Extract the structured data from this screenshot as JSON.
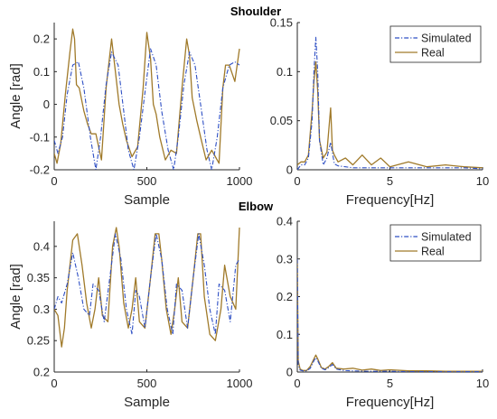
{
  "figure": {
    "titles": {
      "shoulder": "Shoulder",
      "elbow": "Elbow"
    },
    "colors": {
      "simulated": "#2e4fc4",
      "real": "#a07a2a",
      "axis": "#262626"
    }
  },
  "chart_data": [
    {
      "id": "shoulder_time",
      "type": "line",
      "title": "Shoulder",
      "xlabel": "Sample",
      "ylabel": "Angle [rad]",
      "xlim": [
        0,
        1000
      ],
      "ylim": [
        -0.2,
        0.25
      ],
      "xticks": [
        0,
        500,
        1000
      ],
      "yticks": [
        -0.2,
        -0.1,
        0,
        0.1,
        0.2
      ],
      "ytick_labels": [
        "-0.2",
        "-0.1",
        "0",
        "0.1",
        "0.2"
      ],
      "legend": null,
      "series": [
        {
          "name": "Simulated",
          "style": "dashdot",
          "color": "#2e4fc4",
          "x": [
            0,
            20,
            45,
            70,
            100,
            130,
            160,
            195,
            225,
            250,
            280,
            310,
            345,
            375,
            400,
            430,
            460,
            495,
            520,
            550,
            580,
            615,
            645,
            670,
            700,
            730,
            760,
            795,
            825,
            850,
            880,
            910,
            945,
            975,
            1000
          ],
          "y": [
            -0.11,
            -0.15,
            -0.1,
            0.03,
            0.12,
            0.13,
            0.05,
            -0.1,
            -0.2,
            -0.1,
            0.06,
            0.16,
            0.12,
            -0.02,
            -0.14,
            -0.2,
            -0.1,
            0.06,
            0.17,
            0.12,
            -0.02,
            -0.14,
            -0.2,
            -0.1,
            0.06,
            0.16,
            0.12,
            -0.02,
            -0.14,
            -0.2,
            -0.1,
            0.05,
            0.12,
            0.13,
            0.12
          ]
        },
        {
          "name": "Real",
          "style": "solid",
          "color": "#a07a2a",
          "x": [
            0,
            15,
            35,
            60,
            85,
            100,
            110,
            120,
            135,
            160,
            180,
            200,
            225,
            255,
            280,
            310,
            330,
            350,
            370,
            390,
            420,
            450,
            480,
            500,
            520,
            535,
            550,
            570,
            600,
            630,
            660,
            690,
            715,
            730,
            745,
            770,
            790,
            820,
            850,
            870,
            890,
            910,
            925,
            945,
            975,
            1000
          ],
          "y": [
            -0.15,
            -0.18,
            -0.12,
            0.03,
            0.16,
            0.23,
            0.2,
            0.06,
            0.05,
            -0.02,
            -0.06,
            -0.09,
            -0.09,
            -0.17,
            0.05,
            0.2,
            0.1,
            0.0,
            -0.06,
            -0.11,
            -0.16,
            -0.13,
            0.05,
            0.22,
            0.14,
            0.0,
            -0.03,
            -0.1,
            -0.17,
            -0.14,
            -0.15,
            0.05,
            0.2,
            0.15,
            0.02,
            -0.05,
            -0.1,
            -0.17,
            -0.14,
            -0.16,
            -0.18,
            0.05,
            0.12,
            0.12,
            0.07,
            0.17
          ]
        }
      ]
    },
    {
      "id": "shoulder_freq",
      "type": "line",
      "title": "",
      "xlabel": "Frequency[Hz]",
      "ylabel": "",
      "xlim": [
        0,
        10
      ],
      "ylim": [
        0,
        0.15
      ],
      "xticks": [
        0,
        5,
        10
      ],
      "yticks": [
        0,
        0.05,
        0.1,
        0.15
      ],
      "ytick_labels": [
        "0",
        "0.05",
        "0.1",
        "0.15"
      ],
      "legend": "top-right",
      "series": [
        {
          "name": "Simulated",
          "style": "dashdot",
          "color": "#2e4fc4",
          "x": [
            0,
            0.2,
            0.4,
            0.6,
            0.8,
            0.9,
            1.0,
            1.1,
            1.2,
            1.4,
            1.6,
            1.8,
            2.0,
            2.2,
            2.6,
            3.0,
            4.0,
            5.0,
            6.0,
            7.0,
            8.0,
            9.0,
            10.0
          ],
          "y": [
            0.0,
            0.005,
            0.005,
            0.012,
            0.05,
            0.1,
            0.135,
            0.1,
            0.03,
            0.005,
            0.012,
            0.028,
            0.006,
            0.004,
            0.003,
            0.002,
            0.002,
            0.002,
            0.002,
            0.002,
            0.002,
            0.002,
            0.001
          ]
        },
        {
          "name": "Real",
          "style": "solid",
          "color": "#a07a2a",
          "x": [
            0,
            0.2,
            0.4,
            0.6,
            0.8,
            0.9,
            1.0,
            1.1,
            1.2,
            1.4,
            1.6,
            1.8,
            1.9,
            2.0,
            2.2,
            2.6,
            3.0,
            3.5,
            4.0,
            4.5,
            5.0,
            6.0,
            7.0,
            8.0,
            9.0,
            10.0
          ],
          "y": [
            0.005,
            0.008,
            0.008,
            0.015,
            0.06,
            0.09,
            0.11,
            0.08,
            0.03,
            0.012,
            0.018,
            0.063,
            0.02,
            0.015,
            0.008,
            0.012,
            0.005,
            0.015,
            0.005,
            0.012,
            0.003,
            0.008,
            0.003,
            0.005,
            0.003,
            0.002
          ]
        }
      ]
    },
    {
      "id": "elbow_time",
      "type": "line",
      "title": "Elbow",
      "xlabel": "Sample",
      "ylabel": "Angle [rad]",
      "xlim": [
        0,
        1000
      ],
      "ylim": [
        0.2,
        0.44
      ],
      "xticks": [
        0,
        500,
        1000
      ],
      "yticks": [
        0.2,
        0.25,
        0.3,
        0.35,
        0.4
      ],
      "ytick_labels": [
        "0.2",
        "0.25",
        "0.3",
        "0.35",
        "0.4"
      ],
      "legend": null,
      "series": [
        {
          "name": "Simulated",
          "style": "dashdot",
          "color": "#2e4fc4",
          "x": [
            0,
            20,
            40,
            70,
            100,
            130,
            160,
            190,
            210,
            240,
            270,
            300,
            330,
            360,
            390,
            420,
            440,
            460,
            490,
            520,
            550,
            580,
            610,
            640,
            660,
            690,
            720,
            750,
            780,
            810,
            840,
            870,
            890,
            920,
            950,
            980,
            1000
          ],
          "y": [
            0.3,
            0.32,
            0.31,
            0.34,
            0.39,
            0.35,
            0.3,
            0.29,
            0.34,
            0.33,
            0.28,
            0.35,
            0.42,
            0.38,
            0.3,
            0.26,
            0.33,
            0.32,
            0.27,
            0.35,
            0.42,
            0.38,
            0.3,
            0.26,
            0.34,
            0.33,
            0.27,
            0.35,
            0.42,
            0.37,
            0.3,
            0.26,
            0.34,
            0.33,
            0.28,
            0.37,
            0.38
          ]
        },
        {
          "name": "Real",
          "style": "solid",
          "color": "#a07a2a",
          "x": [
            0,
            20,
            40,
            55,
            70,
            100,
            125,
            150,
            175,
            200,
            220,
            240,
            260,
            290,
            315,
            335,
            350,
            375,
            400,
            420,
            440,
            460,
            490,
            520,
            545,
            565,
            580,
            605,
            630,
            650,
            670,
            690,
            720,
            750,
            775,
            790,
            810,
            840,
            870,
            900,
            920,
            950,
            980,
            1000
          ],
          "y": [
            0.3,
            0.29,
            0.24,
            0.27,
            0.33,
            0.41,
            0.42,
            0.37,
            0.31,
            0.27,
            0.3,
            0.35,
            0.29,
            0.28,
            0.4,
            0.43,
            0.4,
            0.31,
            0.27,
            0.3,
            0.35,
            0.28,
            0.27,
            0.35,
            0.42,
            0.42,
            0.38,
            0.3,
            0.26,
            0.3,
            0.35,
            0.28,
            0.27,
            0.35,
            0.42,
            0.42,
            0.32,
            0.26,
            0.25,
            0.3,
            0.37,
            0.32,
            0.3,
            0.43
          ]
        }
      ]
    },
    {
      "id": "elbow_freq",
      "type": "line",
      "title": "",
      "xlabel": "Frequency[Hz]",
      "ylabel": "",
      "xlim": [
        0,
        10
      ],
      "ylim": [
        0,
        0.4
      ],
      "xticks": [
        0,
        5,
        10
      ],
      "yticks": [
        0,
        0.1,
        0.2,
        0.3,
        0.4
      ],
      "ytick_labels": [
        "0",
        "0.1",
        "0.2",
        "0.3",
        "0.4"
      ],
      "legend": "top-right",
      "series": [
        {
          "name": "Simulated",
          "style": "dashdot",
          "color": "#2e4fc4",
          "x": [
            0,
            0.05,
            0.15,
            0.3,
            0.5,
            0.7,
            0.9,
            1.0,
            1.1,
            1.3,
            1.5,
            1.7,
            1.9,
            2.1,
            2.5,
            3.0,
            4.0,
            5.0,
            6.0,
            8.0,
            10.0
          ],
          "y": [
            0.3,
            0.02,
            0.005,
            0.003,
            0.003,
            0.01,
            0.03,
            0.038,
            0.03,
            0.01,
            0.006,
            0.012,
            0.02,
            0.008,
            0.004,
            0.003,
            0.002,
            0.002,
            0.001,
            0.001,
            0.001
          ]
        },
        {
          "name": "Real",
          "style": "solid",
          "color": "#a07a2a",
          "x": [
            0,
            0.05,
            0.15,
            0.3,
            0.5,
            0.7,
            0.9,
            1.0,
            1.1,
            1.3,
            1.5,
            1.7,
            1.9,
            2.1,
            2.5,
            3.0,
            3.5,
            4.0,
            4.5,
            5.0,
            6.0,
            7.0,
            8.0,
            10.0
          ],
          "y": [
            0.3,
            0.03,
            0.008,
            0.004,
            0.004,
            0.015,
            0.035,
            0.045,
            0.035,
            0.012,
            0.008,
            0.015,
            0.025,
            0.01,
            0.008,
            0.01,
            0.005,
            0.008,
            0.004,
            0.006,
            0.003,
            0.003,
            0.002,
            0.002
          ]
        }
      ]
    }
  ]
}
